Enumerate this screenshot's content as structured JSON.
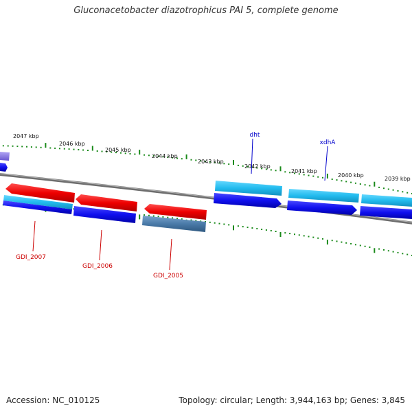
{
  "title": "Gluconacetobacter diazotrophicus PAI 5, complete genome",
  "footer": {
    "accession": "Accession: NC_010125",
    "summary": "Topology: circular; Length: 3,944,163 bp; Genes: 3,845"
  },
  "ruler_labels": [
    "2047 kbp",
    "2046 kbp",
    "2045 kbp",
    "2044 kbp",
    "2043 kbp",
    "2042 kbp",
    "2041 kbp",
    "2040 kbp",
    "2039 kbp"
  ],
  "gene_labels": {
    "top": [
      "dht",
      "xdhA"
    ],
    "bottom": [
      "GDI_2007",
      "GDI_2006",
      "GDI_2005"
    ]
  },
  "colors": {
    "tick_green": "#1a8a1a",
    "backbone": "#808080",
    "red_gene": "#ee0000",
    "blue_gene": "#1010ee",
    "cyan_gene": "#22bbee",
    "steel_gene": "#4a7aa8",
    "purple_gene": "#8a78e0",
    "red_label": "#cc0000",
    "blue_label": "#0000cc"
  }
}
